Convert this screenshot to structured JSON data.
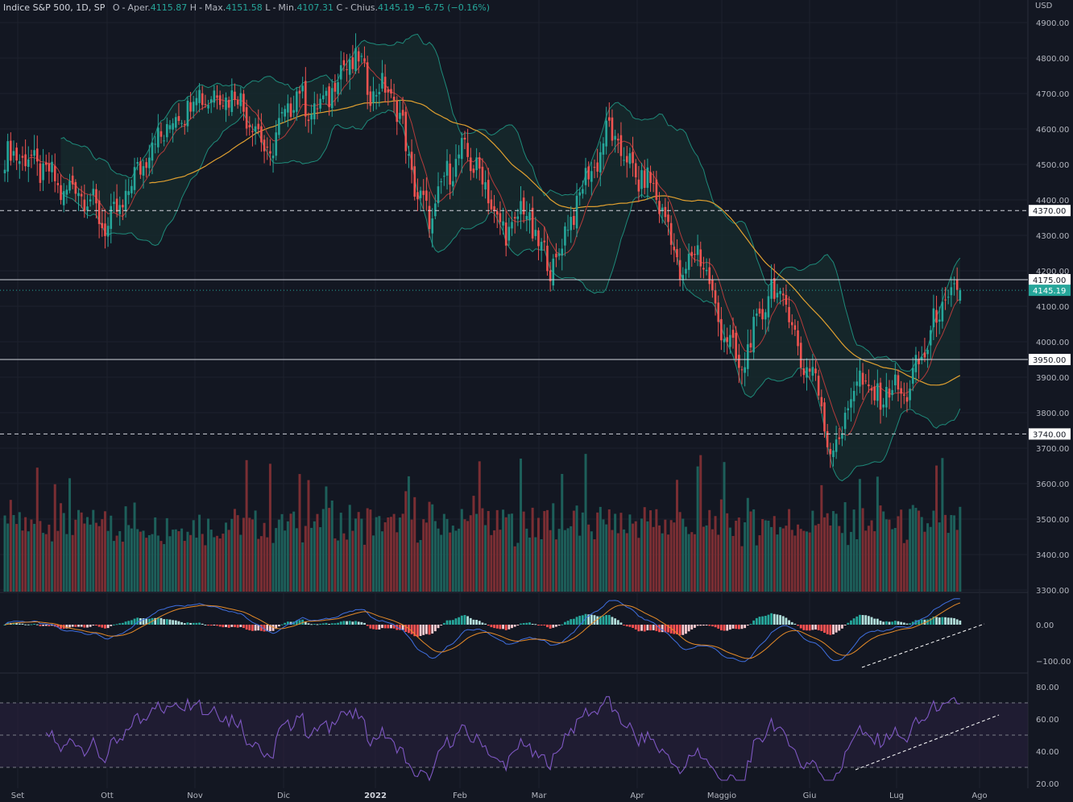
{
  "legend": {
    "symbol": "Indice S&P 500, 1D, SP",
    "o_label": "O",
    "o_text": "Aper.",
    "o_value": "4115.87",
    "h_label": "H",
    "h_text": "Max.",
    "h_value": "4151.58",
    "l_label": "L",
    "l_text": "Min.",
    "l_value": "4107.31",
    "c_label": "C",
    "c_text": "Chius.",
    "c_value": "4145.19",
    "change": "−6.75 (−0.16%)"
  },
  "currency": "USD",
  "colors": {
    "background": "#131722",
    "up": "#26a69a",
    "down": "#ef5350",
    "bb_line": "#1e8a7a",
    "bb_fill": "#172a2d",
    "ma_fast": "#b33b3b",
    "ma_slow": "#e0a030",
    "macd": "#3f6fe0",
    "signal": "#e58a28",
    "rsi": "#7e57c2",
    "rsi_band": "#2a2040",
    "grid": "#1e222d"
  },
  "price_axis": {
    "ticks": [
      "4900.00",
      "4800.00",
      "4700.00",
      "4600.00",
      "4500.00",
      "4400.00",
      "4300.00",
      "4200.00",
      "4100.00",
      "4000.00",
      "3900.00",
      "3800.00",
      "3700.00",
      "3600.00",
      "3500.00",
      "3400.00",
      "3300.00"
    ],
    "levels": [
      {
        "value": 4370,
        "label": "4370.00",
        "style": "dashed"
      },
      {
        "value": 4175,
        "label": "4175.00",
        "style": "solid"
      },
      {
        "value": 3950,
        "label": "3950.00",
        "style": "solid"
      },
      {
        "value": 3740,
        "label": "3740.00",
        "style": "dashed"
      }
    ],
    "last_price_label": "4145.19"
  },
  "macd_axis": {
    "ticks": [
      "0.00",
      "−100.00"
    ]
  },
  "rsi_axis": {
    "ticks": [
      "80.00",
      "60.00",
      "40.00",
      "20.00"
    ]
  },
  "time_axis": {
    "labels": [
      {
        "text": "Set",
        "bold": false
      },
      {
        "text": "Ott",
        "bold": false
      },
      {
        "text": "Nov",
        "bold": false
      },
      {
        "text": "Dic",
        "bold": false
      },
      {
        "text": "2022",
        "bold": true
      },
      {
        "text": "Feb",
        "bold": false
      },
      {
        "text": "Mar",
        "bold": false
      },
      {
        "text": "Apr",
        "bold": false
      },
      {
        "text": "Maggio",
        "bold": false
      },
      {
        "text": "Giu",
        "bold": false
      },
      {
        "text": "Lug",
        "bold": false
      },
      {
        "text": "Ago",
        "bold": false
      }
    ]
  },
  "chart_data": {
    "type": "candlestick",
    "title": "Indice S&P 500, 1D, SP",
    "ylabel": "USD",
    "ylim": [
      3300,
      4900
    ],
    "anchors": {
      "dates": [
        "Set",
        "Ott",
        "Nov",
        "Dic",
        "2022",
        "Feb",
        "Mar",
        "Apr",
        "Maggio",
        "Giu",
        "Lug",
        "Ago"
      ],
      "close_path": [
        [
          0,
          4520
        ],
        [
          5,
          4530
        ],
        [
          10,
          4500
        ],
        [
          15,
          4470
        ],
        [
          20,
          4420
        ],
        [
          25,
          4440
        ],
        [
          30,
          4380
        ],
        [
          35,
          4320
        ],
        [
          40,
          4390
        ],
        [
          45,
          4480
        ],
        [
          50,
          4560
        ],
        [
          55,
          4600
        ],
        [
          60,
          4650
        ],
        [
          65,
          4700
        ],
        [
          70,
          4690
        ],
        [
          75,
          4700
        ],
        [
          80,
          4680
        ],
        [
          85,
          4600
        ],
        [
          90,
          4520
        ],
        [
          95,
          4650
        ],
        [
          100,
          4700
        ],
        [
          105,
          4640
        ],
        [
          110,
          4700
        ],
        [
          115,
          4780
        ],
        [
          120,
          4790
        ],
        [
          125,
          4700
        ],
        [
          130,
          4720
        ],
        [
          135,
          4600
        ],
        [
          140,
          4400
        ],
        [
          145,
          4350
        ],
        [
          150,
          4480
        ],
        [
          155,
          4530
        ],
        [
          160,
          4500
        ],
        [
          165,
          4390
        ],
        [
          170,
          4290
        ],
        [
          175,
          4380
        ],
        [
          180,
          4300
        ],
        [
          185,
          4200
        ],
        [
          190,
          4300
        ],
        [
          195,
          4420
        ],
        [
          200,
          4500
        ],
        [
          205,
          4600
        ],
        [
          210,
          4520
        ],
        [
          215,
          4460
        ],
        [
          220,
          4440
        ],
        [
          225,
          4320
        ],
        [
          230,
          4170
        ],
        [
          235,
          4280
        ],
        [
          240,
          4120
        ],
        [
          245,
          4000
        ],
        [
          250,
          3920
        ],
        [
          255,
          4050
        ],
        [
          260,
          4150
        ],
        [
          265,
          4110
        ],
        [
          270,
          3950
        ],
        [
          275,
          3900
        ],
        [
          280,
          3680
        ],
        [
          285,
          3790
        ],
        [
          290,
          3910
        ],
        [
          295,
          3830
        ],
        [
          300,
          3870
        ],
        [
          305,
          3850
        ],
        [
          310,
          3930
        ],
        [
          315,
          4050
        ],
        [
          320,
          4120
        ],
        [
          324,
          4145
        ]
      ]
    },
    "volume_axis_note": "bar heights relative",
    "indicators": [
      "Bollinger Bands",
      "MA 9",
      "MA 50",
      "Volume",
      "MACD",
      "RSI 14"
    ],
    "rsi_levels": [
      70,
      50,
      30
    ],
    "grid": true
  }
}
